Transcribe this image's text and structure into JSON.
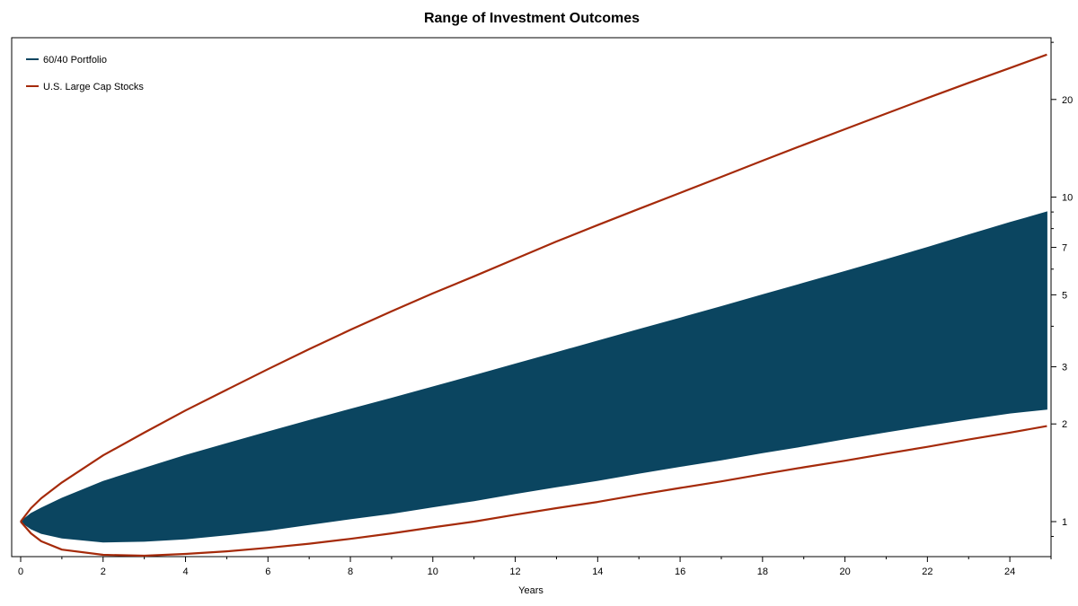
{
  "chart_data": {
    "type": "area",
    "title": "Range of Investment Outcomes",
    "xlabel": "Years",
    "ylabel": "",
    "x_scale": "linear",
    "y_scale": "log",
    "y_axis_side": "right",
    "xlim": [
      0,
      25
    ],
    "ylim": [
      0.78,
      31
    ],
    "x_ticks": [
      0,
      2,
      4,
      6,
      8,
      10,
      12,
      14,
      16,
      18,
      20,
      22,
      24
    ],
    "y_ticks": [
      1,
      2,
      3,
      5,
      7,
      10,
      20
    ],
    "grid": false,
    "legend_position": "top-left",
    "series": [
      {
        "name": "60/40 Portfolio",
        "style": "band",
        "color": "#0b4560",
        "x": [
          0,
          0.25,
          0.5,
          1,
          2,
          3,
          4,
          5,
          6,
          7,
          8,
          9,
          10,
          11,
          12,
          13,
          14,
          15,
          16,
          17,
          18,
          19,
          20,
          21,
          22,
          23,
          24,
          24.9
        ],
        "upper": [
          1.0,
          1.06,
          1.1,
          1.18,
          1.33,
          1.46,
          1.6,
          1.74,
          1.89,
          2.05,
          2.22,
          2.4,
          2.6,
          2.82,
          3.06,
          3.32,
          3.6,
          3.91,
          4.24,
          4.6,
          5.0,
          5.43,
          5.9,
          6.42,
          7.0,
          7.65,
          8.35,
          9.0
        ],
        "lower": [
          1.0,
          0.95,
          0.92,
          0.89,
          0.865,
          0.87,
          0.885,
          0.91,
          0.94,
          0.98,
          1.02,
          1.06,
          1.11,
          1.16,
          1.22,
          1.28,
          1.34,
          1.41,
          1.48,
          1.55,
          1.63,
          1.71,
          1.8,
          1.89,
          1.98,
          2.07,
          2.16,
          2.22
        ]
      },
      {
        "name": "U.S. Large Cap Stocks",
        "style": "bounds",
        "color": "#a52a0a",
        "x": [
          0,
          0.25,
          0.5,
          1,
          2,
          3,
          4,
          5,
          6,
          7,
          8,
          9,
          10,
          11,
          12,
          13,
          14,
          15,
          16,
          17,
          18,
          19,
          20,
          21,
          22,
          23,
          24,
          24.9
        ],
        "upper": [
          1.0,
          1.1,
          1.18,
          1.32,
          1.6,
          1.88,
          2.2,
          2.55,
          2.95,
          3.4,
          3.9,
          4.45,
          5.05,
          5.7,
          6.45,
          7.3,
          8.2,
          9.2,
          10.3,
          11.55,
          12.95,
          14.5,
          16.2,
          18.1,
          20.2,
          22.5,
          25.0,
          27.5
        ],
        "lower": [
          1.0,
          0.92,
          0.87,
          0.82,
          0.79,
          0.785,
          0.795,
          0.81,
          0.83,
          0.855,
          0.885,
          0.92,
          0.96,
          1.0,
          1.05,
          1.1,
          1.15,
          1.21,
          1.27,
          1.33,
          1.4,
          1.47,
          1.54,
          1.62,
          1.7,
          1.79,
          1.88,
          1.97
        ]
      }
    ]
  }
}
